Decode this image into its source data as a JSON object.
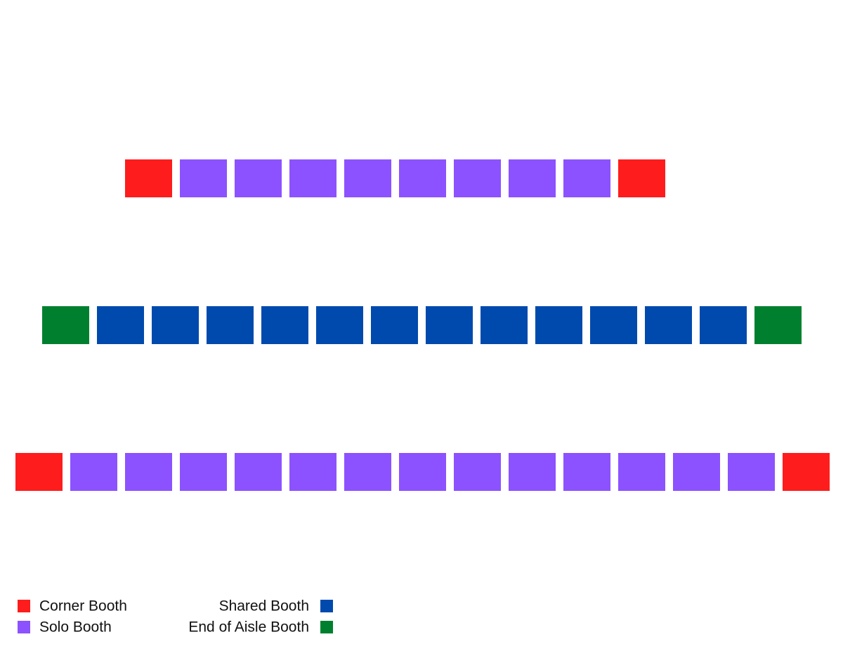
{
  "legend": {
    "items": [
      {
        "label": "Corner Booth",
        "color": "#ff1c1c"
      },
      {
        "label": "Solo Booth",
        "color": "#8c52ff"
      },
      {
        "label": "Shared Booth",
        "color": "#004aad"
      },
      {
        "label": "End of Aisle Booth",
        "color": "#00802f"
      }
    ]
  }
}
